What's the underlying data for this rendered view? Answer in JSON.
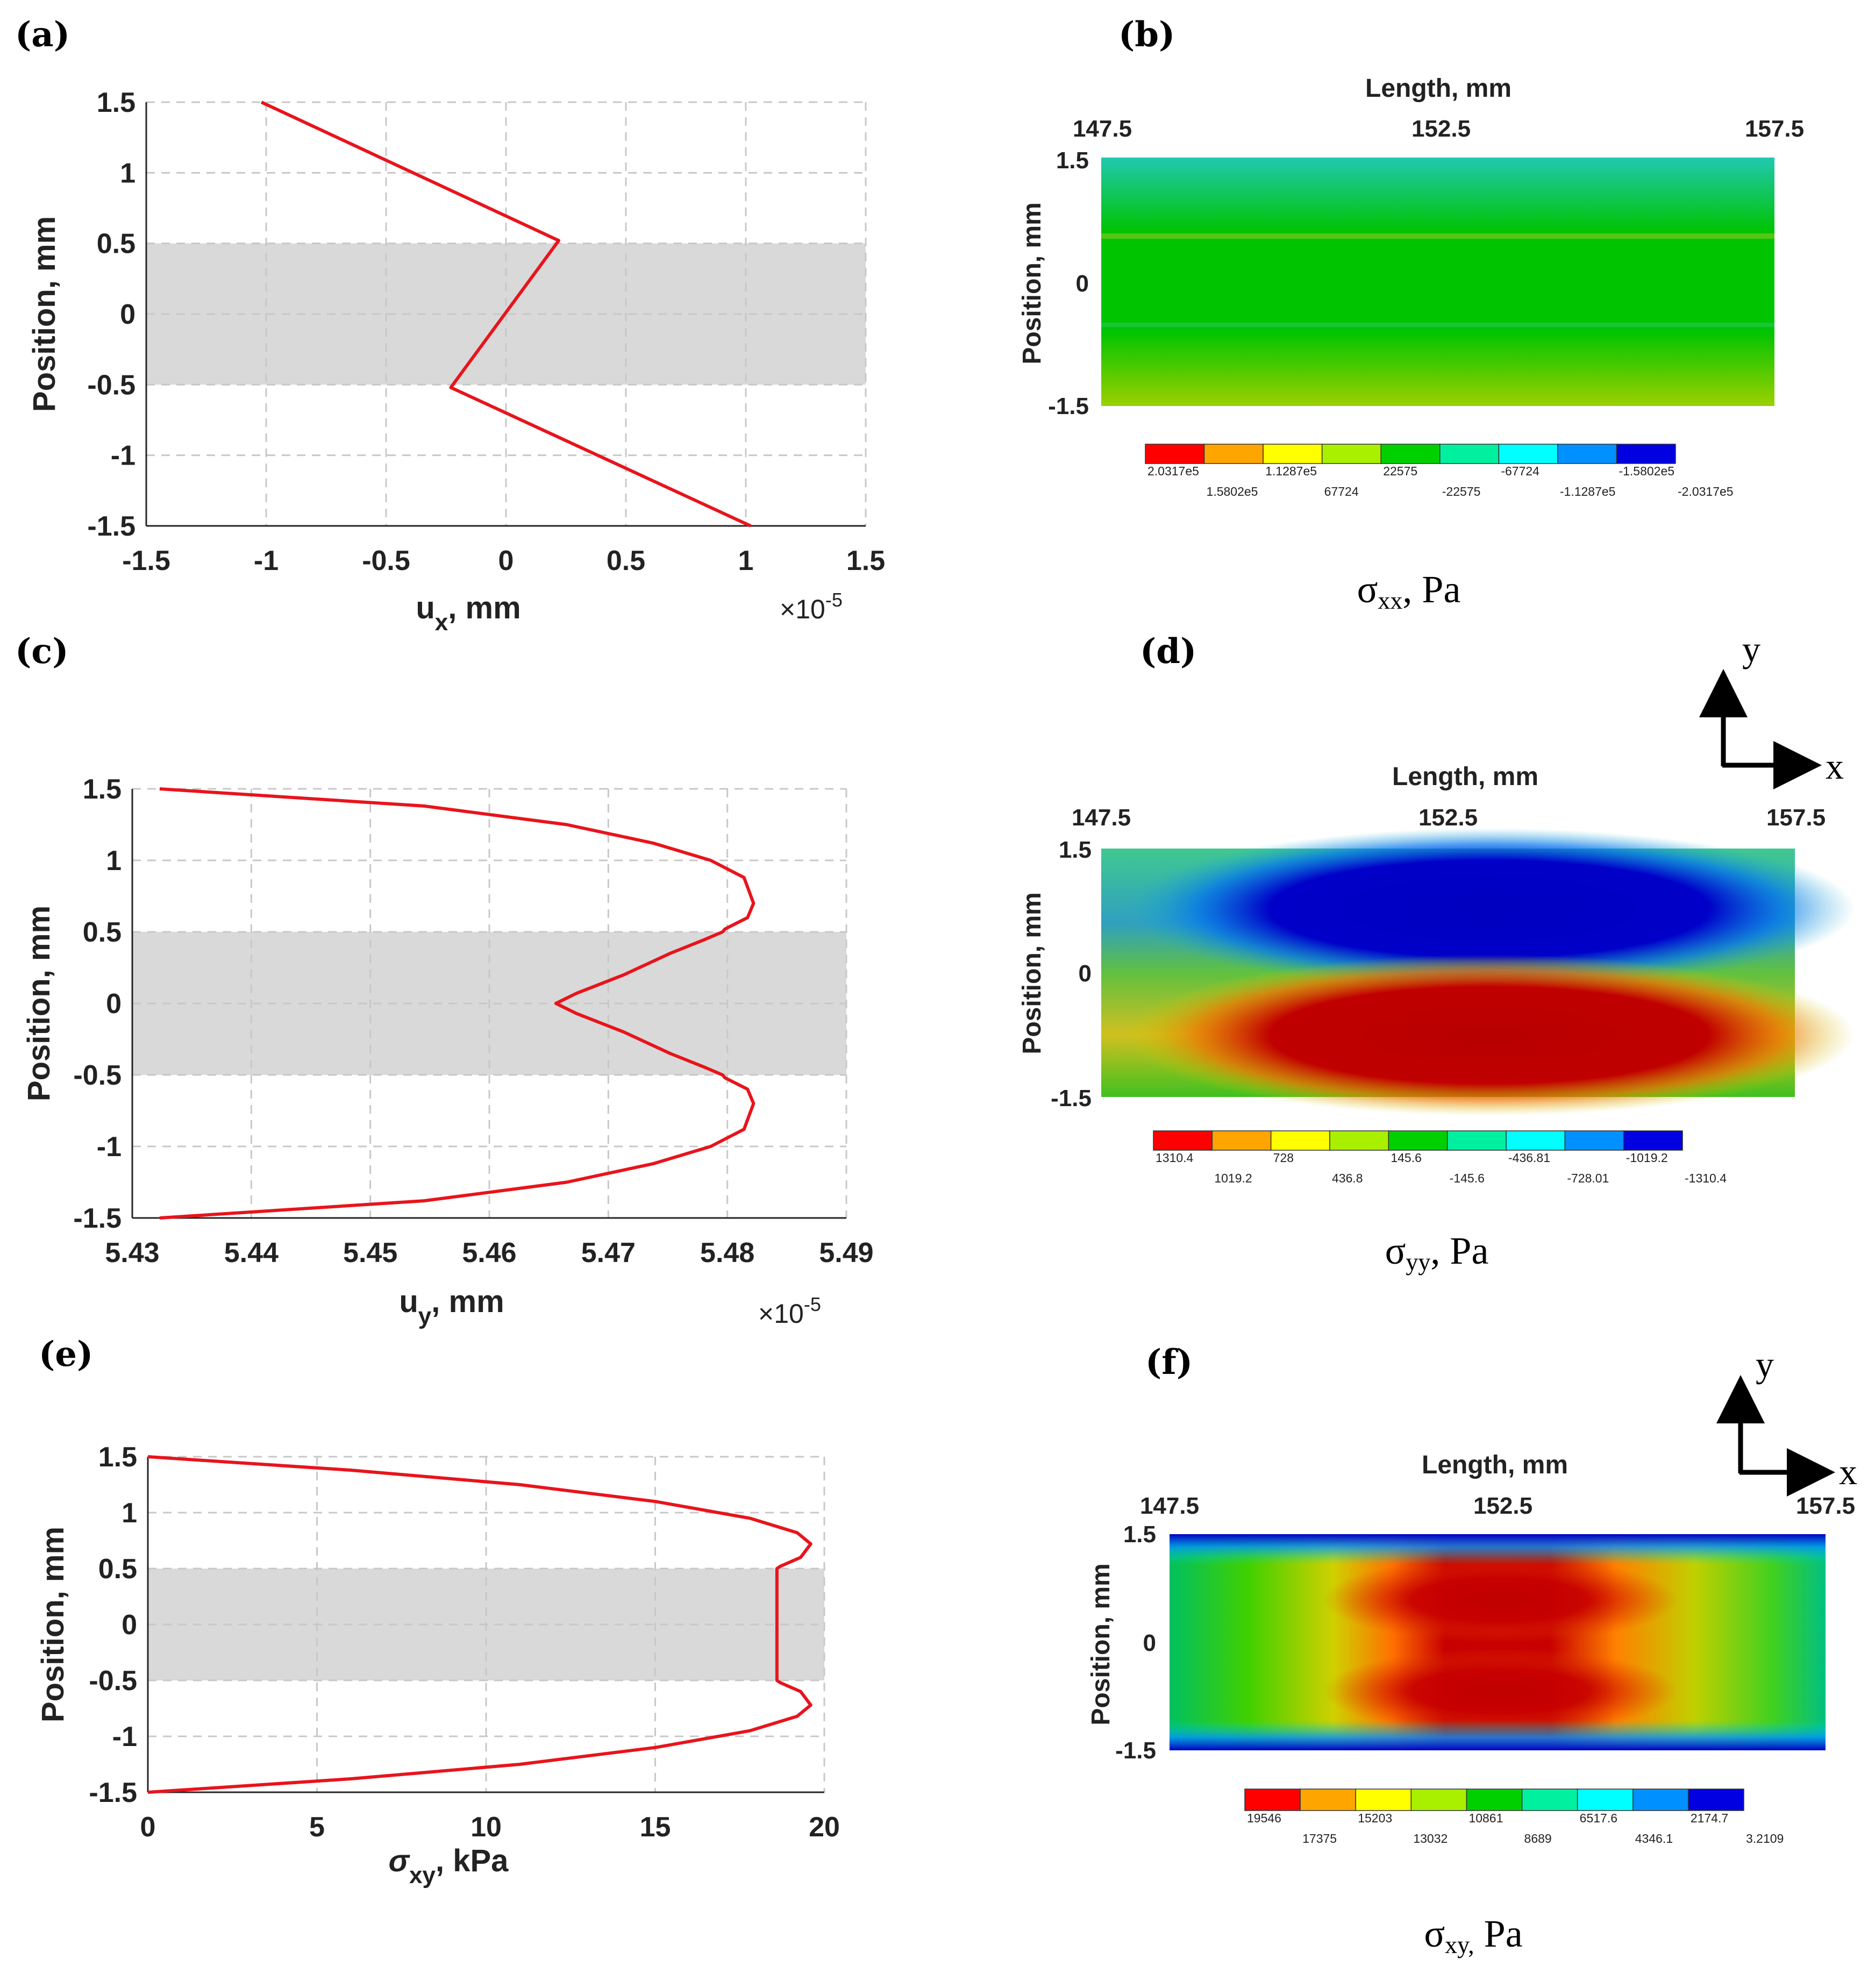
{
  "colors": {
    "curve": "#e8141c",
    "band": "#d9d9d9",
    "colormap": [
      "#ff0000",
      "#ffa500",
      "#ffff00",
      "#a8f000",
      "#00d000",
      "#00f0a0",
      "#00ffff",
      "#0090ff",
      "#0000e0"
    ]
  },
  "arrows": {
    "x_label": "x",
    "y_label": "y"
  },
  "chart_data": [
    {
      "id": "a",
      "panel_label": "(a)",
      "type": "line",
      "xlabel": "u",
      "xlabel_sub": "x",
      "xlabel_unit": ", mm",
      "ylabel": "Position, mm",
      "multiplier": "×10",
      "multiplier_exp": "-5",
      "xlim": [
        -1.5,
        1.5
      ],
      "ylim": [
        -1.5,
        1.5
      ],
      "xticks": [
        -1.5,
        -1,
        -0.5,
        0,
        0.5,
        1,
        1.5
      ],
      "xtick_labels": [
        "-1.5",
        "-1",
        "-0.5",
        "0",
        "0.5",
        "1",
        "1.5"
      ],
      "yticks": [
        1.5,
        1,
        0.5,
        0,
        -0.5,
        -1,
        -1.5
      ],
      "ytick_labels": [
        "1.5",
        "1",
        "0.5",
        "0",
        "-0.5",
        "-1",
        "-1.5"
      ],
      "band": [
        -0.5,
        0.5
      ],
      "grid": true,
      "series": [
        {
          "x": [
            -1.02,
            0.22,
            -0.23,
            1.02
          ],
          "y": [
            1.5,
            0.52,
            -0.52,
            -1.5
          ]
        }
      ]
    },
    {
      "id": "c",
      "panel_label": "(c)",
      "type": "line",
      "xlabel": "u",
      "xlabel_sub": "y",
      "xlabel_unit": ", mm",
      "ylabel": "Position, mm",
      "multiplier": "×10",
      "multiplier_exp": "-5",
      "xlim": [
        5.43,
        5.49
      ],
      "ylim": [
        -1.5,
        1.5
      ],
      "xticks": [
        5.43,
        5.44,
        5.45,
        5.46,
        5.47,
        5.48,
        5.49
      ],
      "xtick_labels": [
        "5.43",
        "5.44",
        "5.45",
        "5.46",
        "5.47",
        "5.48",
        "5.49"
      ],
      "yticks": [
        1.5,
        1,
        0.5,
        0,
        -0.5,
        -1,
        -1.5
      ],
      "ytick_labels": [
        "1.5",
        "1",
        "0.5",
        "0",
        "-0.5",
        "-1",
        "-1.5"
      ],
      "band": [
        -0.5,
        0.5
      ],
      "grid": true,
      "series": [
        {
          "x": [
            5.4323,
            5.4545,
            5.4665,
            5.4738,
            5.4786,
            5.4814,
            5.4822,
            5.4817,
            5.4798,
            5.4796,
            5.4782,
            5.4752,
            5.4713,
            5.4673,
            5.4656,
            5.4673,
            5.4713,
            5.4752,
            5.4782,
            5.4796,
            5.4798,
            5.4817,
            5.4822,
            5.4814,
            5.4786,
            5.4738,
            5.4665,
            5.4545,
            5.4323
          ],
          "y": [
            1.5,
            1.38,
            1.25,
            1.12,
            1.0,
            0.88,
            0.7,
            0.6,
            0.52,
            0.5,
            0.45,
            0.35,
            0.2,
            0.07,
            0.0,
            -0.07,
            -0.2,
            -0.35,
            -0.45,
            -0.5,
            -0.52,
            -0.6,
            -0.7,
            -0.88,
            -1.0,
            -1.12,
            -1.25,
            -1.38,
            -1.5
          ]
        }
      ]
    },
    {
      "id": "e",
      "panel_label": "(e)",
      "type": "line",
      "xlabel": "σ",
      "xlabel_sub": "xy",
      "xlabel_unit": ", kPa",
      "ylabel": "Position, mm",
      "xlim": [
        0,
        20
      ],
      "ylim": [
        -1.5,
        1.5
      ],
      "xticks": [
        0,
        5,
        10,
        15,
        20
      ],
      "xtick_labels": [
        "0",
        "5",
        "10",
        "15",
        "20"
      ],
      "yticks": [
        1.5,
        1,
        0.5,
        0,
        -0.5,
        -1,
        -1.5
      ],
      "ytick_labels": [
        "1.5",
        "1",
        "0.5",
        "0",
        "-0.5",
        "-1",
        "-1.5"
      ],
      "band": [
        -0.5,
        0.5
      ],
      "grid": true,
      "series": [
        {
          "x": [
            0,
            6.0,
            11.0,
            15.0,
            17.8,
            19.2,
            19.6,
            19.3,
            18.7,
            18.6,
            18.6,
            18.7,
            19.3,
            19.6,
            19.2,
            17.8,
            15.0,
            11.0,
            6.0,
            0
          ],
          "y": [
            1.5,
            1.38,
            1.25,
            1.1,
            0.95,
            0.82,
            0.72,
            0.6,
            0.52,
            0.5,
            -0.5,
            -0.52,
            -0.6,
            -0.72,
            -0.82,
            -0.95,
            -1.1,
            -1.25,
            -1.38,
            -1.5
          ]
        }
      ]
    },
    {
      "id": "b",
      "panel_label": "(b)",
      "type": "heatmap",
      "top_label": "Length, mm",
      "xtick_labels": [
        "147.5",
        "152.5",
        "157.5"
      ],
      "ylabel": "Position, mm",
      "ytick_labels": [
        "1.5",
        "0",
        "-1.5"
      ],
      "caption_main": "σ",
      "caption_sub": "xx",
      "caption_unit": ", Pa",
      "colorbar_upper": [
        "2.0317e5",
        "1.1287e5",
        "22575",
        "-67724",
        "-1.5802e5"
      ],
      "colorbar_lower": [
        "1.5802e5",
        "67724",
        "-22575",
        "-1.1287e5",
        "-2.0317e5"
      ]
    },
    {
      "id": "d",
      "panel_label": "(d)",
      "type": "heatmap",
      "top_label": "Length, mm",
      "xtick_labels": [
        "147.5",
        "152.5",
        "157.5"
      ],
      "ylabel": "Position, mm",
      "ytick_labels": [
        "1.5",
        "0",
        "-1.5"
      ],
      "caption_main": "σ",
      "caption_sub": "yy",
      "caption_unit": ", Pa",
      "colorbar_upper": [
        "1310.4",
        "728",
        "145.6",
        "-436.81",
        "-1019.2"
      ],
      "colorbar_lower": [
        "1019.2",
        "436.8",
        "-145.6",
        "-728.01",
        "-1310.4"
      ]
    },
    {
      "id": "f",
      "panel_label": "(f)",
      "type": "heatmap",
      "top_label": "Length, mm",
      "xtick_labels": [
        "147.5",
        "152.5",
        "157.5"
      ],
      "ylabel": "Position, mm",
      "ytick_labels": [
        "1.5",
        "0",
        "-1.5"
      ],
      "caption_main": "σ",
      "caption_sub": "xy,",
      "caption_unit": " Pa",
      "colorbar_upper": [
        "19546",
        "15203",
        "10861",
        "6517.6",
        "2174.7"
      ],
      "colorbar_lower": [
        "17375",
        "13032",
        "8689",
        "4346.1",
        "3.2109"
      ]
    }
  ]
}
